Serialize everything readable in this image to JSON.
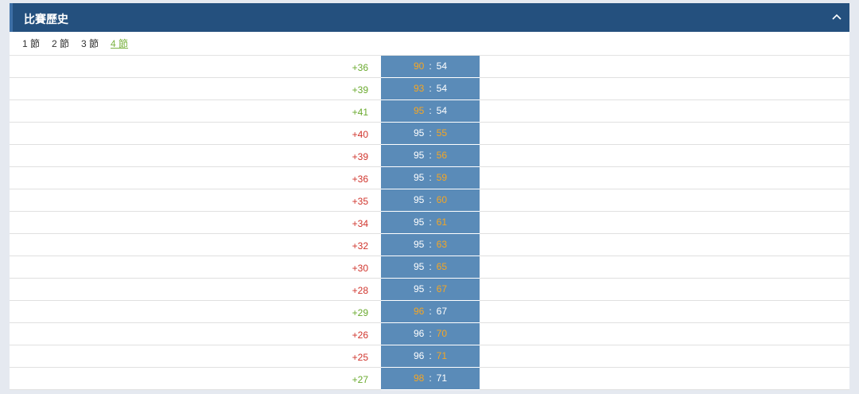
{
  "header": {
    "title": "比賽歷史"
  },
  "tabs": {
    "items": [
      "1 節",
      "2 節",
      "3 節",
      "4 節"
    ],
    "active": 3,
    "color": "#333333",
    "active_color": "#7cb342"
  },
  "score_colors": {
    "win": "#6aaa2e",
    "lose": "#d0342c",
    "scored": "#f5a623",
    "plain": "#ffffff"
  },
  "separator": ":",
  "rows": [
    {
      "lead": "+36",
      "trend": "win",
      "home": 90,
      "away": 54,
      "scored": "home"
    },
    {
      "lead": "+39",
      "trend": "win",
      "home": 93,
      "away": 54,
      "scored": "home"
    },
    {
      "lead": "+41",
      "trend": "win",
      "home": 95,
      "away": 54,
      "scored": "home"
    },
    {
      "lead": "+40",
      "trend": "lose",
      "home": 95,
      "away": 55,
      "scored": "away"
    },
    {
      "lead": "+39",
      "trend": "lose",
      "home": 95,
      "away": 56,
      "scored": "away"
    },
    {
      "lead": "+36",
      "trend": "lose",
      "home": 95,
      "away": 59,
      "scored": "away"
    },
    {
      "lead": "+35",
      "trend": "lose",
      "home": 95,
      "away": 60,
      "scored": "away"
    },
    {
      "lead": "+34",
      "trend": "lose",
      "home": 95,
      "away": 61,
      "scored": "away"
    },
    {
      "lead": "+32",
      "trend": "lose",
      "home": 95,
      "away": 63,
      "scored": "away"
    },
    {
      "lead": "+30",
      "trend": "lose",
      "home": 95,
      "away": 65,
      "scored": "away"
    },
    {
      "lead": "+28",
      "trend": "lose",
      "home": 95,
      "away": 67,
      "scored": "away"
    },
    {
      "lead": "+29",
      "trend": "win",
      "home": 96,
      "away": 67,
      "scored": "home"
    },
    {
      "lead": "+26",
      "trend": "lose",
      "home": 96,
      "away": 70,
      "scored": "away"
    },
    {
      "lead": "+25",
      "trend": "lose",
      "home": 96,
      "away": 71,
      "scored": "away"
    },
    {
      "lead": "+27",
      "trend": "win",
      "home": 98,
      "away": 71,
      "scored": "home"
    }
  ]
}
